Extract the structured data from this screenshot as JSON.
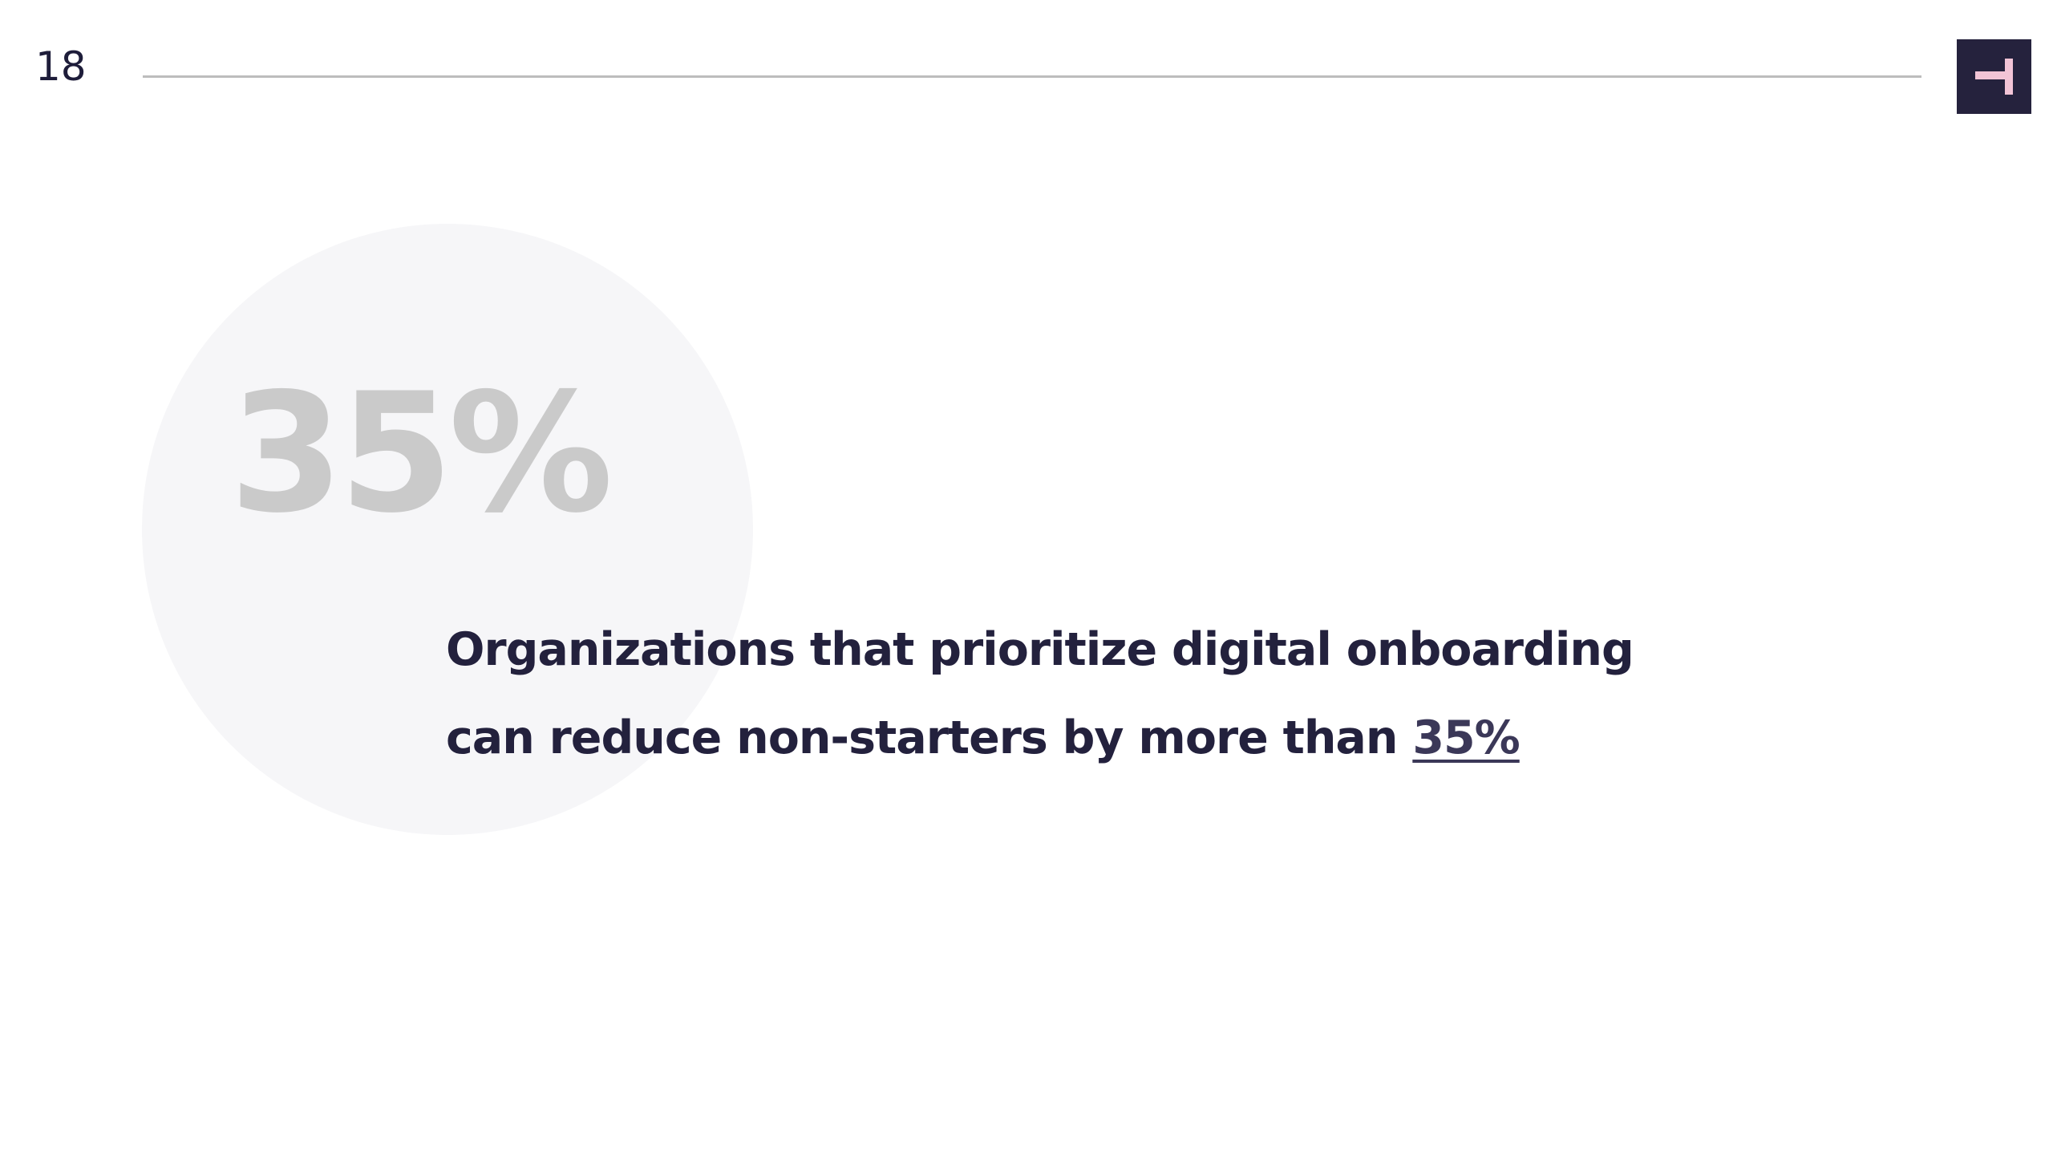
{
  "slide": {
    "page_number": "18",
    "big_stat": "35%",
    "statement": {
      "line1": "Organizations that prioritize digital onboarding",
      "line2_prefix": "can reduce non-starters by more than ",
      "line2_highlight": "35%"
    }
  },
  "logo": {
    "icon": "brand-logo-icon",
    "background_color": "#25223d",
    "mark_color": "#f2c4d6"
  },
  "colors": {
    "text_primary": "#23213d",
    "stat_watermark": "#cacaca",
    "circle_background": "#f6f6f8",
    "rule": "#bdbdbd"
  }
}
